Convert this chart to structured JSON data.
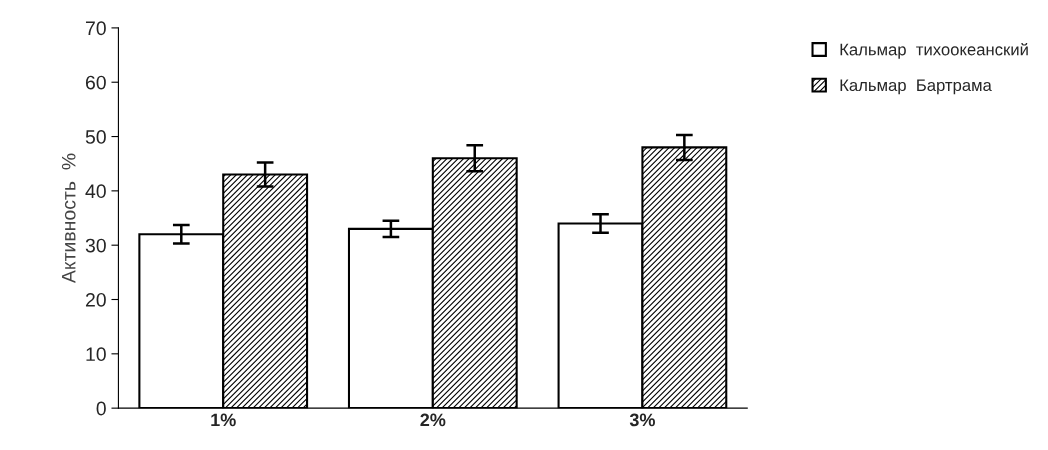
{
  "chart_data": {
    "type": "bar",
    "ylabel": "Активность  %",
    "categories": [
      "1%",
      "2%",
      "3%"
    ],
    "series": [
      {
        "name": "Кальмар  тихоокеанский",
        "color": "#ffffff",
        "values": [
          32,
          33,
          34
        ],
        "errors": [
          1.7,
          1.5,
          1.7
        ]
      },
      {
        "name": "Кальмар  Бартрама",
        "color": "#000000",
        "values": [
          43,
          46,
          48
        ],
        "errors": [
          2.2,
          2.4,
          2.3
        ]
      }
    ],
    "ylim": [
      0,
      70
    ],
    "yticks": [
      0,
      10,
      20,
      30,
      40,
      50,
      60,
      70
    ],
    "grid": false,
    "legend": "top right"
  }
}
